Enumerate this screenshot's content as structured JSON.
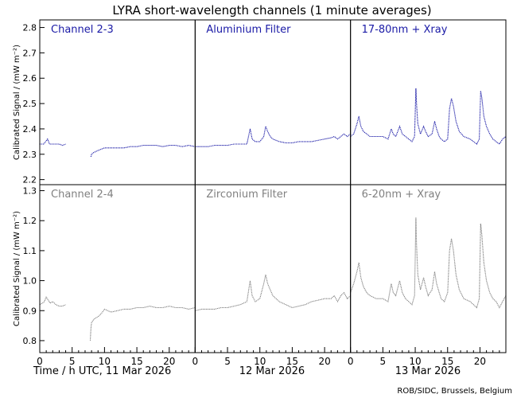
{
  "title": "LYRA short-wavelength channels (1 minute averages)",
  "credit": "ROB/SIDC, Brussels, Belgium",
  "chart_data": {
    "type": "scatter",
    "ylabel": "Calibrated Signal / (mW m⁻²)",
    "x_tick_labels": [
      "0",
      "5",
      "10",
      "15",
      "20"
    ],
    "x_range_hours": [
      0,
      24
    ],
    "day_labels": [
      "Time / h UTC, 11 Mar 2026",
      "12 Mar 2026",
      "13 Mar 2026"
    ],
    "rows": [
      {
        "channel": "Channel 2-3",
        "filters": [
          "Aluminium Filter",
          "17-80nm + Xray"
        ],
        "color": "#1a1aa6",
        "ylim": [
          2.18,
          2.83
        ],
        "y_ticks": [
          2.2,
          2.3,
          2.4,
          2.5,
          2.6,
          2.7,
          2.8
        ],
        "y_tick_labels": [
          "2.2",
          "2.3",
          "2.4",
          "2.5",
          "2.6",
          "2.7",
          "2.8"
        ],
        "series": [
          {
            "day": 0,
            "points": [
              [
                0,
                2.34
              ],
              [
                0.3,
                2.34
              ],
              [
                0.6,
                2.34
              ],
              [
                0.9,
                2.35
              ],
              [
                1.2,
                2.36
              ],
              [
                1.5,
                2.34
              ],
              [
                2,
                2.34
              ],
              [
                2.5,
                2.34
              ],
              [
                3,
                2.34
              ],
              [
                3.5,
                2.335
              ],
              [
                4,
                2.34
              ],
              [
                7.9,
                2.29
              ],
              [
                8,
                2.3
              ],
              [
                8.2,
                2.305
              ],
              [
                8.6,
                2.31
              ],
              [
                9,
                2.315
              ],
              [
                9.5,
                2.32
              ],
              [
                10,
                2.325
              ],
              [
                11,
                2.325
              ],
              [
                12,
                2.325
              ],
              [
                13,
                2.325
              ],
              [
                14,
                2.33
              ],
              [
                15,
                2.33
              ],
              [
                16,
                2.335
              ],
              [
                17,
                2.335
              ],
              [
                18,
                2.335
              ],
              [
                19,
                2.33
              ],
              [
                20,
                2.335
              ],
              [
                21,
                2.335
              ],
              [
                22,
                2.33
              ],
              [
                23,
                2.335
              ],
              [
                24,
                2.33
              ]
            ]
          },
          {
            "day": 1,
            "points": [
              [
                0,
                2.33
              ],
              [
                1,
                2.33
              ],
              [
                2,
                2.33
              ],
              [
                3,
                2.335
              ],
              [
                4,
                2.335
              ],
              [
                5,
                2.335
              ],
              [
                6,
                2.34
              ],
              [
                7,
                2.34
              ],
              [
                8,
                2.34
              ],
              [
                8.5,
                2.4
              ],
              [
                8.8,
                2.36
              ],
              [
                9.3,
                2.35
              ],
              [
                10,
                2.35
              ],
              [
                10.6,
                2.37
              ],
              [
                10.9,
                2.41
              ],
              [
                11.2,
                2.39
              ],
              [
                11.6,
                2.37
              ],
              [
                12,
                2.36
              ],
              [
                13,
                2.35
              ],
              [
                14,
                2.345
              ],
              [
                15,
                2.345
              ],
              [
                16,
                2.35
              ],
              [
                17,
                2.35
              ],
              [
                18,
                2.35
              ],
              [
                19,
                2.355
              ],
              [
                20,
                2.36
              ],
              [
                21,
                2.365
              ],
              [
                21.5,
                2.37
              ],
              [
                22,
                2.36
              ],
              [
                22.5,
                2.37
              ],
              [
                23,
                2.38
              ],
              [
                23.5,
                2.37
              ],
              [
                24,
                2.38
              ]
            ]
          },
          {
            "day": 2,
            "points": [
              [
                0,
                2.37
              ],
              [
                0.5,
                2.38
              ],
              [
                1,
                2.42
              ],
              [
                1.3,
                2.45
              ],
              [
                1.6,
                2.41
              ],
              [
                2,
                2.39
              ],
              [
                2.5,
                2.38
              ],
              [
                3,
                2.37
              ],
              [
                4,
                2.37
              ],
              [
                5,
                2.37
              ],
              [
                5.8,
                2.36
              ],
              [
                6.3,
                2.4
              ],
              [
                6.6,
                2.38
              ],
              [
                7,
                2.37
              ],
              [
                7.6,
                2.41
              ],
              [
                8,
                2.38
              ],
              [
                8.5,
                2.37
              ],
              [
                9,
                2.36
              ],
              [
                9.5,
                2.35
              ],
              [
                9.9,
                2.37
              ],
              [
                10.1,
                2.56
              ],
              [
                10.2,
                2.5
              ],
              [
                10.4,
                2.42
              ],
              [
                10.8,
                2.38
              ],
              [
                11.3,
                2.41
              ],
              [
                11.6,
                2.39
              ],
              [
                12,
                2.37
              ],
              [
                12.6,
                2.38
              ],
              [
                13,
                2.43
              ],
              [
                13.3,
                2.4
              ],
              [
                13.7,
                2.37
              ],
              [
                14,
                2.36
              ],
              [
                14.5,
                2.35
              ],
              [
                15,
                2.36
              ],
              [
                15.3,
                2.48
              ],
              [
                15.6,
                2.52
              ],
              [
                15.9,
                2.49
              ],
              [
                16.3,
                2.43
              ],
              [
                16.8,
                2.39
              ],
              [
                17.5,
                2.37
              ],
              [
                18.5,
                2.36
              ],
              [
                19,
                2.35
              ],
              [
                19.5,
                2.34
              ],
              [
                19.9,
                2.36
              ],
              [
                20.1,
                2.55
              ],
              [
                20.3,
                2.52
              ],
              [
                20.6,
                2.45
              ],
              [
                21,
                2.41
              ],
              [
                21.5,
                2.38
              ],
              [
                22,
                2.36
              ],
              [
                22.5,
                2.35
              ],
              [
                23,
                2.34
              ],
              [
                23.5,
                2.36
              ],
              [
                24,
                2.37
              ]
            ]
          }
        ]
      },
      {
        "channel": "Channel 2-4",
        "filters": [
          "Zirconium Filter",
          "6-20nm + Xray"
        ],
        "color": "#808080",
        "ylim": [
          0.76,
          1.32
        ],
        "y_ticks": [
          0.8,
          0.9,
          1.0,
          1.1,
          1.2,
          1.3
        ],
        "y_tick_labels": [
          "0.8",
          "0.9",
          "1.0",
          "1.1",
          "1.2",
          "1.3"
        ],
        "series": [
          {
            "day": 0,
            "points": [
              [
                0,
                0.92
              ],
              [
                0.4,
                0.925
              ],
              [
                0.7,
                0.93
              ],
              [
                1.0,
                0.945
              ],
              [
                1.3,
                0.935
              ],
              [
                1.6,
                0.925
              ],
              [
                2,
                0.93
              ],
              [
                2.5,
                0.92
              ],
              [
                3,
                0.915
              ],
              [
                3.5,
                0.915
              ],
              [
                4,
                0.92
              ],
              [
                7.8,
                0.8
              ],
              [
                7.9,
                0.84
              ],
              [
                8,
                0.86
              ],
              [
                8.3,
                0.87
              ],
              [
                8.6,
                0.875
              ],
              [
                9,
                0.88
              ],
              [
                9.5,
                0.89
              ],
              [
                10,
                0.905
              ],
              [
                10.5,
                0.9
              ],
              [
                11,
                0.895
              ],
              [
                12,
                0.9
              ],
              [
                13,
                0.905
              ],
              [
                14,
                0.905
              ],
              [
                15,
                0.91
              ],
              [
                16,
                0.91
              ],
              [
                17,
                0.915
              ],
              [
                18,
                0.91
              ],
              [
                19,
                0.91
              ],
              [
                20,
                0.915
              ],
              [
                21,
                0.91
              ],
              [
                22,
                0.91
              ],
              [
                23,
                0.905
              ],
              [
                24,
                0.91
              ]
            ]
          },
          {
            "day": 1,
            "points": [
              [
                0,
                0.9
              ],
              [
                1,
                0.905
              ],
              [
                2,
                0.905
              ],
              [
                3,
                0.905
              ],
              [
                4,
                0.91
              ],
              [
                5,
                0.91
              ],
              [
                6,
                0.915
              ],
              [
                7,
                0.92
              ],
              [
                8,
                0.93
              ],
              [
                8.5,
                1.0
              ],
              [
                8.8,
                0.95
              ],
              [
                9.3,
                0.93
              ],
              [
                10,
                0.94
              ],
              [
                10.6,
                0.99
              ],
              [
                10.9,
                1.02
              ],
              [
                11.2,
                0.99
              ],
              [
                11.6,
                0.97
              ],
              [
                12,
                0.95
              ],
              [
                13,
                0.93
              ],
              [
                14,
                0.92
              ],
              [
                15,
                0.91
              ],
              [
                16,
                0.915
              ],
              [
                17,
                0.92
              ],
              [
                18,
                0.93
              ],
              [
                19,
                0.935
              ],
              [
                20,
                0.94
              ],
              [
                21,
                0.94
              ],
              [
                21.5,
                0.95
              ],
              [
                22,
                0.93
              ],
              [
                22.5,
                0.95
              ],
              [
                23,
                0.96
              ],
              [
                23.5,
                0.94
              ],
              [
                24,
                0.95
              ]
            ]
          },
          {
            "day": 2,
            "points": [
              [
                0,
                0.96
              ],
              [
                0.5,
                0.99
              ],
              [
                1,
                1.03
              ],
              [
                1.3,
                1.06
              ],
              [
                1.6,
                1.01
              ],
              [
                2,
                0.98
              ],
              [
                2.5,
                0.96
              ],
              [
                3,
                0.95
              ],
              [
                4,
                0.94
              ],
              [
                5,
                0.94
              ],
              [
                5.8,
                0.93
              ],
              [
                6.3,
                0.99
              ],
              [
                6.6,
                0.96
              ],
              [
                7,
                0.95
              ],
              [
                7.6,
                1.0
              ],
              [
                8,
                0.96
              ],
              [
                8.5,
                0.94
              ],
              [
                9,
                0.93
              ],
              [
                9.5,
                0.92
              ],
              [
                9.9,
                0.95
              ],
              [
                10.1,
                1.21
              ],
              [
                10.2,
                1.12
              ],
              [
                10.4,
                1.02
              ],
              [
                10.8,
                0.97
              ],
              [
                11.3,
                1.01
              ],
              [
                11.6,
                0.98
              ],
              [
                12,
                0.95
              ],
              [
                12.6,
                0.97
              ],
              [
                13,
                1.03
              ],
              [
                13.3,
                0.99
              ],
              [
                13.7,
                0.96
              ],
              [
                14,
                0.94
              ],
              [
                14.5,
                0.93
              ],
              [
                15,
                0.96
              ],
              [
                15.3,
                1.1
              ],
              [
                15.6,
                1.14
              ],
              [
                15.9,
                1.1
              ],
              [
                16.3,
                1.02
              ],
              [
                16.8,
                0.97
              ],
              [
                17.5,
                0.94
              ],
              [
                18.5,
                0.93
              ],
              [
                19,
                0.92
              ],
              [
                19.5,
                0.91
              ],
              [
                19.9,
                0.94
              ],
              [
                20.1,
                1.19
              ],
              [
                20.3,
                1.15
              ],
              [
                20.6,
                1.06
              ],
              [
                21,
                1.0
              ],
              [
                21.5,
                0.96
              ],
              [
                22,
                0.94
              ],
              [
                22.5,
                0.93
              ],
              [
                23,
                0.91
              ],
              [
                23.5,
                0.93
              ],
              [
                24,
                0.95
              ]
            ]
          }
        ]
      }
    ]
  }
}
